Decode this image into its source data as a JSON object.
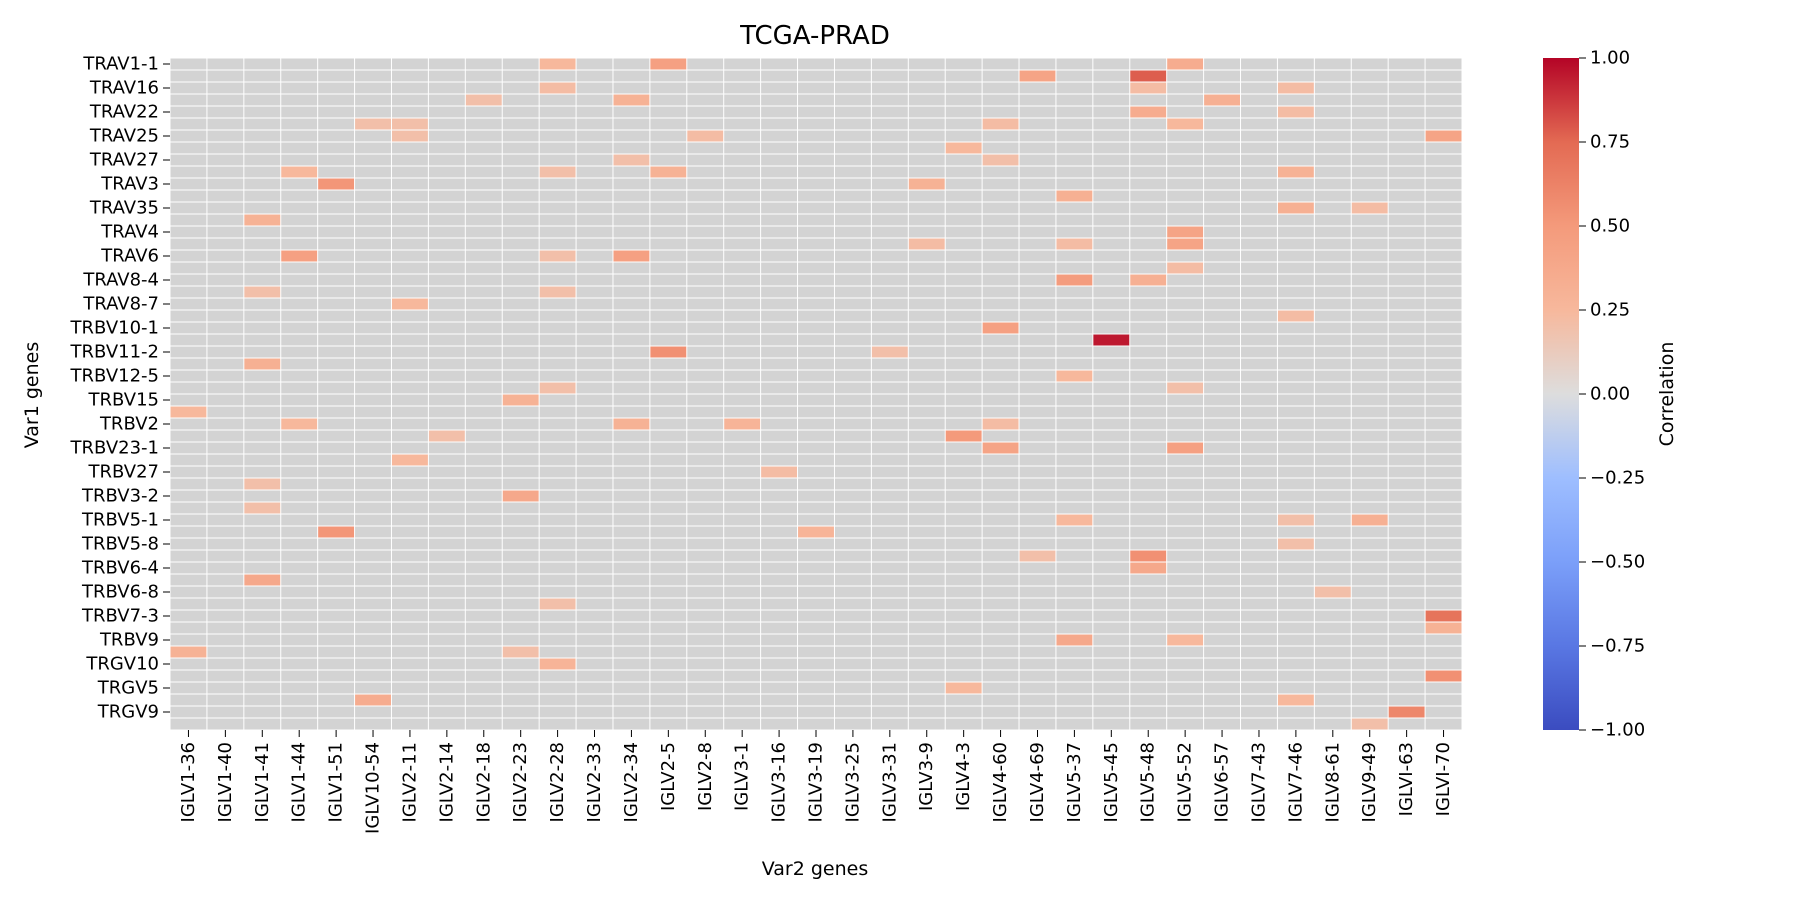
{
  "chart_data": {
    "type": "heatmap",
    "title": "TCGA-PRAD",
    "xlabel": "Var2 genes",
    "ylabel": "Var1 genes",
    "colorbar_label": "Correlation",
    "colormap": "coolwarm",
    "vlim": [
      -1.0,
      1.0
    ],
    "nan_color": "#d3d3d3",
    "colorbar_ticks": [
      "1.00",
      "0.75",
      "0.50",
      "0.25",
      "0.00",
      "−0.25",
      "−0.50",
      "−0.75",
      "−1.00"
    ],
    "x_tick_labels": [
      "IGLV1-36",
      "IGLV1-40",
      "IGLV1-41",
      "IGLV1-44",
      "IGLV1-51",
      "IGLV10-54",
      "IGLV2-11",
      "IGLV2-14",
      "IGLV2-18",
      "IGLV2-23",
      "IGLV2-28",
      "IGLV2-33",
      "IGLV2-34",
      "IGLV2-5",
      "IGLV2-8",
      "IGLV3-1",
      "IGLV3-16",
      "IGLV3-19",
      "IGLV3-25",
      "IGLV3-31",
      "IGLV3-9",
      "IGLV4-3",
      "IGLV4-60",
      "IGLV4-69",
      "IGLV5-37",
      "IGLV5-45",
      "IGLV5-48",
      "IGLV5-52",
      "IGLV6-57",
      "IGLV7-43",
      "IGLV7-46",
      "IGLV8-61",
      "IGLV9-49",
      "IGLVI-63",
      "IGLVI-70"
    ],
    "y_tick_labels": [
      "TRAV1-1",
      "TRAV16",
      "TRAV22",
      "TRAV25",
      "TRAV27",
      "TRAV3",
      "TRAV35",
      "TRAV4",
      "TRAV6",
      "TRAV8-4",
      "TRAV8-7",
      "TRBV10-1",
      "TRBV11-2",
      "TRBV12-5",
      "TRBV15",
      "TRBV2",
      "TRBV23-1",
      "TRBV27",
      "TRBV3-2",
      "TRBV5-1",
      "TRBV5-8",
      "TRBV6-4",
      "TRBV6-8",
      "TRBV7-3",
      "TRBV9",
      "TRGV10",
      "TRGV5",
      "TRGV9"
    ],
    "n_rows": 56,
    "n_cols": 35,
    "y_tick_every": 2,
    "cells": [
      [
        0,
        10,
        0.25
      ],
      [
        0,
        13,
        0.45
      ],
      [
        0,
        27,
        0.35
      ],
      [
        1,
        23,
        0.42
      ],
      [
        1,
        26,
        0.78
      ],
      [
        2,
        10,
        0.22
      ],
      [
        2,
        26,
        0.22
      ],
      [
        2,
        30,
        0.22
      ],
      [
        3,
        8,
        0.2
      ],
      [
        3,
        12,
        0.3
      ],
      [
        3,
        28,
        0.32
      ],
      [
        4,
        26,
        0.35
      ],
      [
        4,
        30,
        0.22
      ],
      [
        5,
        5,
        0.2
      ],
      [
        5,
        6,
        0.2
      ],
      [
        5,
        22,
        0.22
      ],
      [
        5,
        27,
        0.25
      ],
      [
        6,
        6,
        0.2
      ],
      [
        6,
        14,
        0.22
      ],
      [
        6,
        34,
        0.42
      ],
      [
        7,
        21,
        0.25
      ],
      [
        8,
        12,
        0.2
      ],
      [
        8,
        22,
        0.2
      ],
      [
        9,
        3,
        0.25
      ],
      [
        9,
        10,
        0.2
      ],
      [
        9,
        13,
        0.3
      ],
      [
        9,
        30,
        0.3
      ],
      [
        10,
        4,
        0.52
      ],
      [
        10,
        20,
        0.3
      ],
      [
        11,
        24,
        0.32
      ],
      [
        12,
        30,
        0.32
      ],
      [
        12,
        32,
        0.22
      ],
      [
        13,
        2,
        0.3
      ],
      [
        14,
        27,
        0.42
      ],
      [
        15,
        20,
        0.22
      ],
      [
        15,
        24,
        0.22
      ],
      [
        15,
        27,
        0.42
      ],
      [
        16,
        3,
        0.45
      ],
      [
        16,
        10,
        0.2
      ],
      [
        16,
        12,
        0.45
      ],
      [
        17,
        27,
        0.22
      ],
      [
        18,
        24,
        0.48
      ],
      [
        18,
        26,
        0.32
      ],
      [
        19,
        2,
        0.2
      ],
      [
        19,
        10,
        0.2
      ],
      [
        20,
        6,
        0.25
      ],
      [
        21,
        30,
        0.22
      ],
      [
        22,
        22,
        0.45
      ],
      [
        23,
        25,
        0.95
      ],
      [
        24,
        13,
        0.55
      ],
      [
        24,
        19,
        0.2
      ],
      [
        25,
        2,
        0.32
      ],
      [
        26,
        24,
        0.25
      ],
      [
        27,
        10,
        0.2
      ],
      [
        27,
        27,
        0.2
      ],
      [
        28,
        9,
        0.3
      ],
      [
        29,
        0,
        0.25
      ],
      [
        30,
        3,
        0.25
      ],
      [
        30,
        12,
        0.3
      ],
      [
        30,
        15,
        0.28
      ],
      [
        30,
        22,
        0.22
      ],
      [
        31,
        7,
        0.2
      ],
      [
        31,
        21,
        0.5
      ],
      [
        32,
        22,
        0.42
      ],
      [
        32,
        27,
        0.45
      ],
      [
        33,
        6,
        0.25
      ],
      [
        34,
        16,
        0.22
      ],
      [
        35,
        2,
        0.2
      ],
      [
        36,
        9,
        0.38
      ],
      [
        37,
        2,
        0.2
      ],
      [
        38,
        24,
        0.25
      ],
      [
        38,
        30,
        0.2
      ],
      [
        38,
        32,
        0.32
      ],
      [
        39,
        4,
        0.52
      ],
      [
        39,
        17,
        0.28
      ],
      [
        40,
        30,
        0.2
      ],
      [
        41,
        23,
        0.2
      ],
      [
        41,
        26,
        0.55
      ],
      [
        42,
        26,
        0.38
      ],
      [
        43,
        2,
        0.38
      ],
      [
        44,
        31,
        0.2
      ],
      [
        45,
        10,
        0.2
      ],
      [
        46,
        34,
        0.7
      ],
      [
        47,
        34,
        0.3
      ],
      [
        48,
        24,
        0.38
      ],
      [
        48,
        27,
        0.25
      ],
      [
        49,
        0,
        0.3
      ],
      [
        49,
        9,
        0.2
      ],
      [
        50,
        10,
        0.28
      ],
      [
        51,
        34,
        0.55
      ],
      [
        52,
        21,
        0.25
      ],
      [
        53,
        5,
        0.35
      ],
      [
        53,
        30,
        0.25
      ],
      [
        54,
        33,
        0.6
      ],
      [
        55,
        32,
        0.2
      ]
    ]
  }
}
